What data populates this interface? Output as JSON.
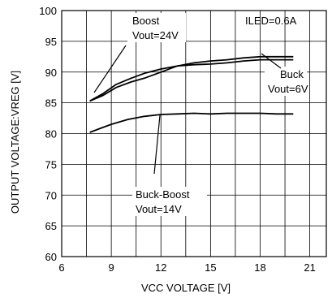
{
  "chart_data": {
    "type": "line",
    "xlabel": "VCC VOLTAGE  [V]",
    "ylabel": "OUTPUT VOLTAGE:VREG [V]",
    "xlim": [
      6,
      22
    ],
    "ylim": [
      60,
      100
    ],
    "xticks": [
      6,
      9,
      12,
      15,
      18,
      21
    ],
    "yticks": [
      60,
      65,
      70,
      75,
      80,
      85,
      90,
      95,
      100
    ],
    "grid": true,
    "series": [
      {
        "name": "Boost Vout=24V",
        "x": [
          7.7,
          8.5,
          9.3,
          10.2,
          11.0,
          12.0,
          13.0,
          14.0,
          15.0,
          16.0,
          17.0,
          18.0,
          19.0,
          20.0
        ],
        "y": [
          85.3,
          86.5,
          88.0,
          89.0,
          89.8,
          90.5,
          91.0,
          91.2,
          91.3,
          91.5,
          91.8,
          92.0,
          92.0,
          92.0
        ]
      },
      {
        "name": "Buck Vout=6V",
        "x": [
          7.7,
          8.5,
          9.3,
          10.2,
          11.0,
          12.0,
          13.0,
          14.0,
          15.0,
          16.0,
          17.0,
          18.0,
          19.0,
          20.0
        ],
        "y": [
          85.3,
          86.2,
          87.5,
          88.4,
          89.0,
          90.0,
          91.0,
          91.5,
          91.8,
          92.0,
          92.3,
          92.5,
          92.5,
          92.5
        ]
      },
      {
        "name": "Buck-Boost Vout=14V",
        "x": [
          7.7,
          8.5,
          9.0,
          10.0,
          11.0,
          12.0,
          13.0,
          14.0,
          15.0,
          16.0,
          17.0,
          18.0,
          19.0,
          20.0
        ],
        "y": [
          80.2,
          81.0,
          81.5,
          82.3,
          82.8,
          83.1,
          83.2,
          83.3,
          83.2,
          83.3,
          83.3,
          83.3,
          83.2,
          83.2
        ]
      }
    ],
    "annotations": {
      "iled": "ILED=0.6A",
      "boost_line1": "Boost",
      "boost_line2": "Vout=24V",
      "buck_line1": "Buck",
      "buck_line2": "Vout=6V",
      "bb_line1": "Buck-Boost",
      "bb_line2": "Vout=14V"
    }
  }
}
